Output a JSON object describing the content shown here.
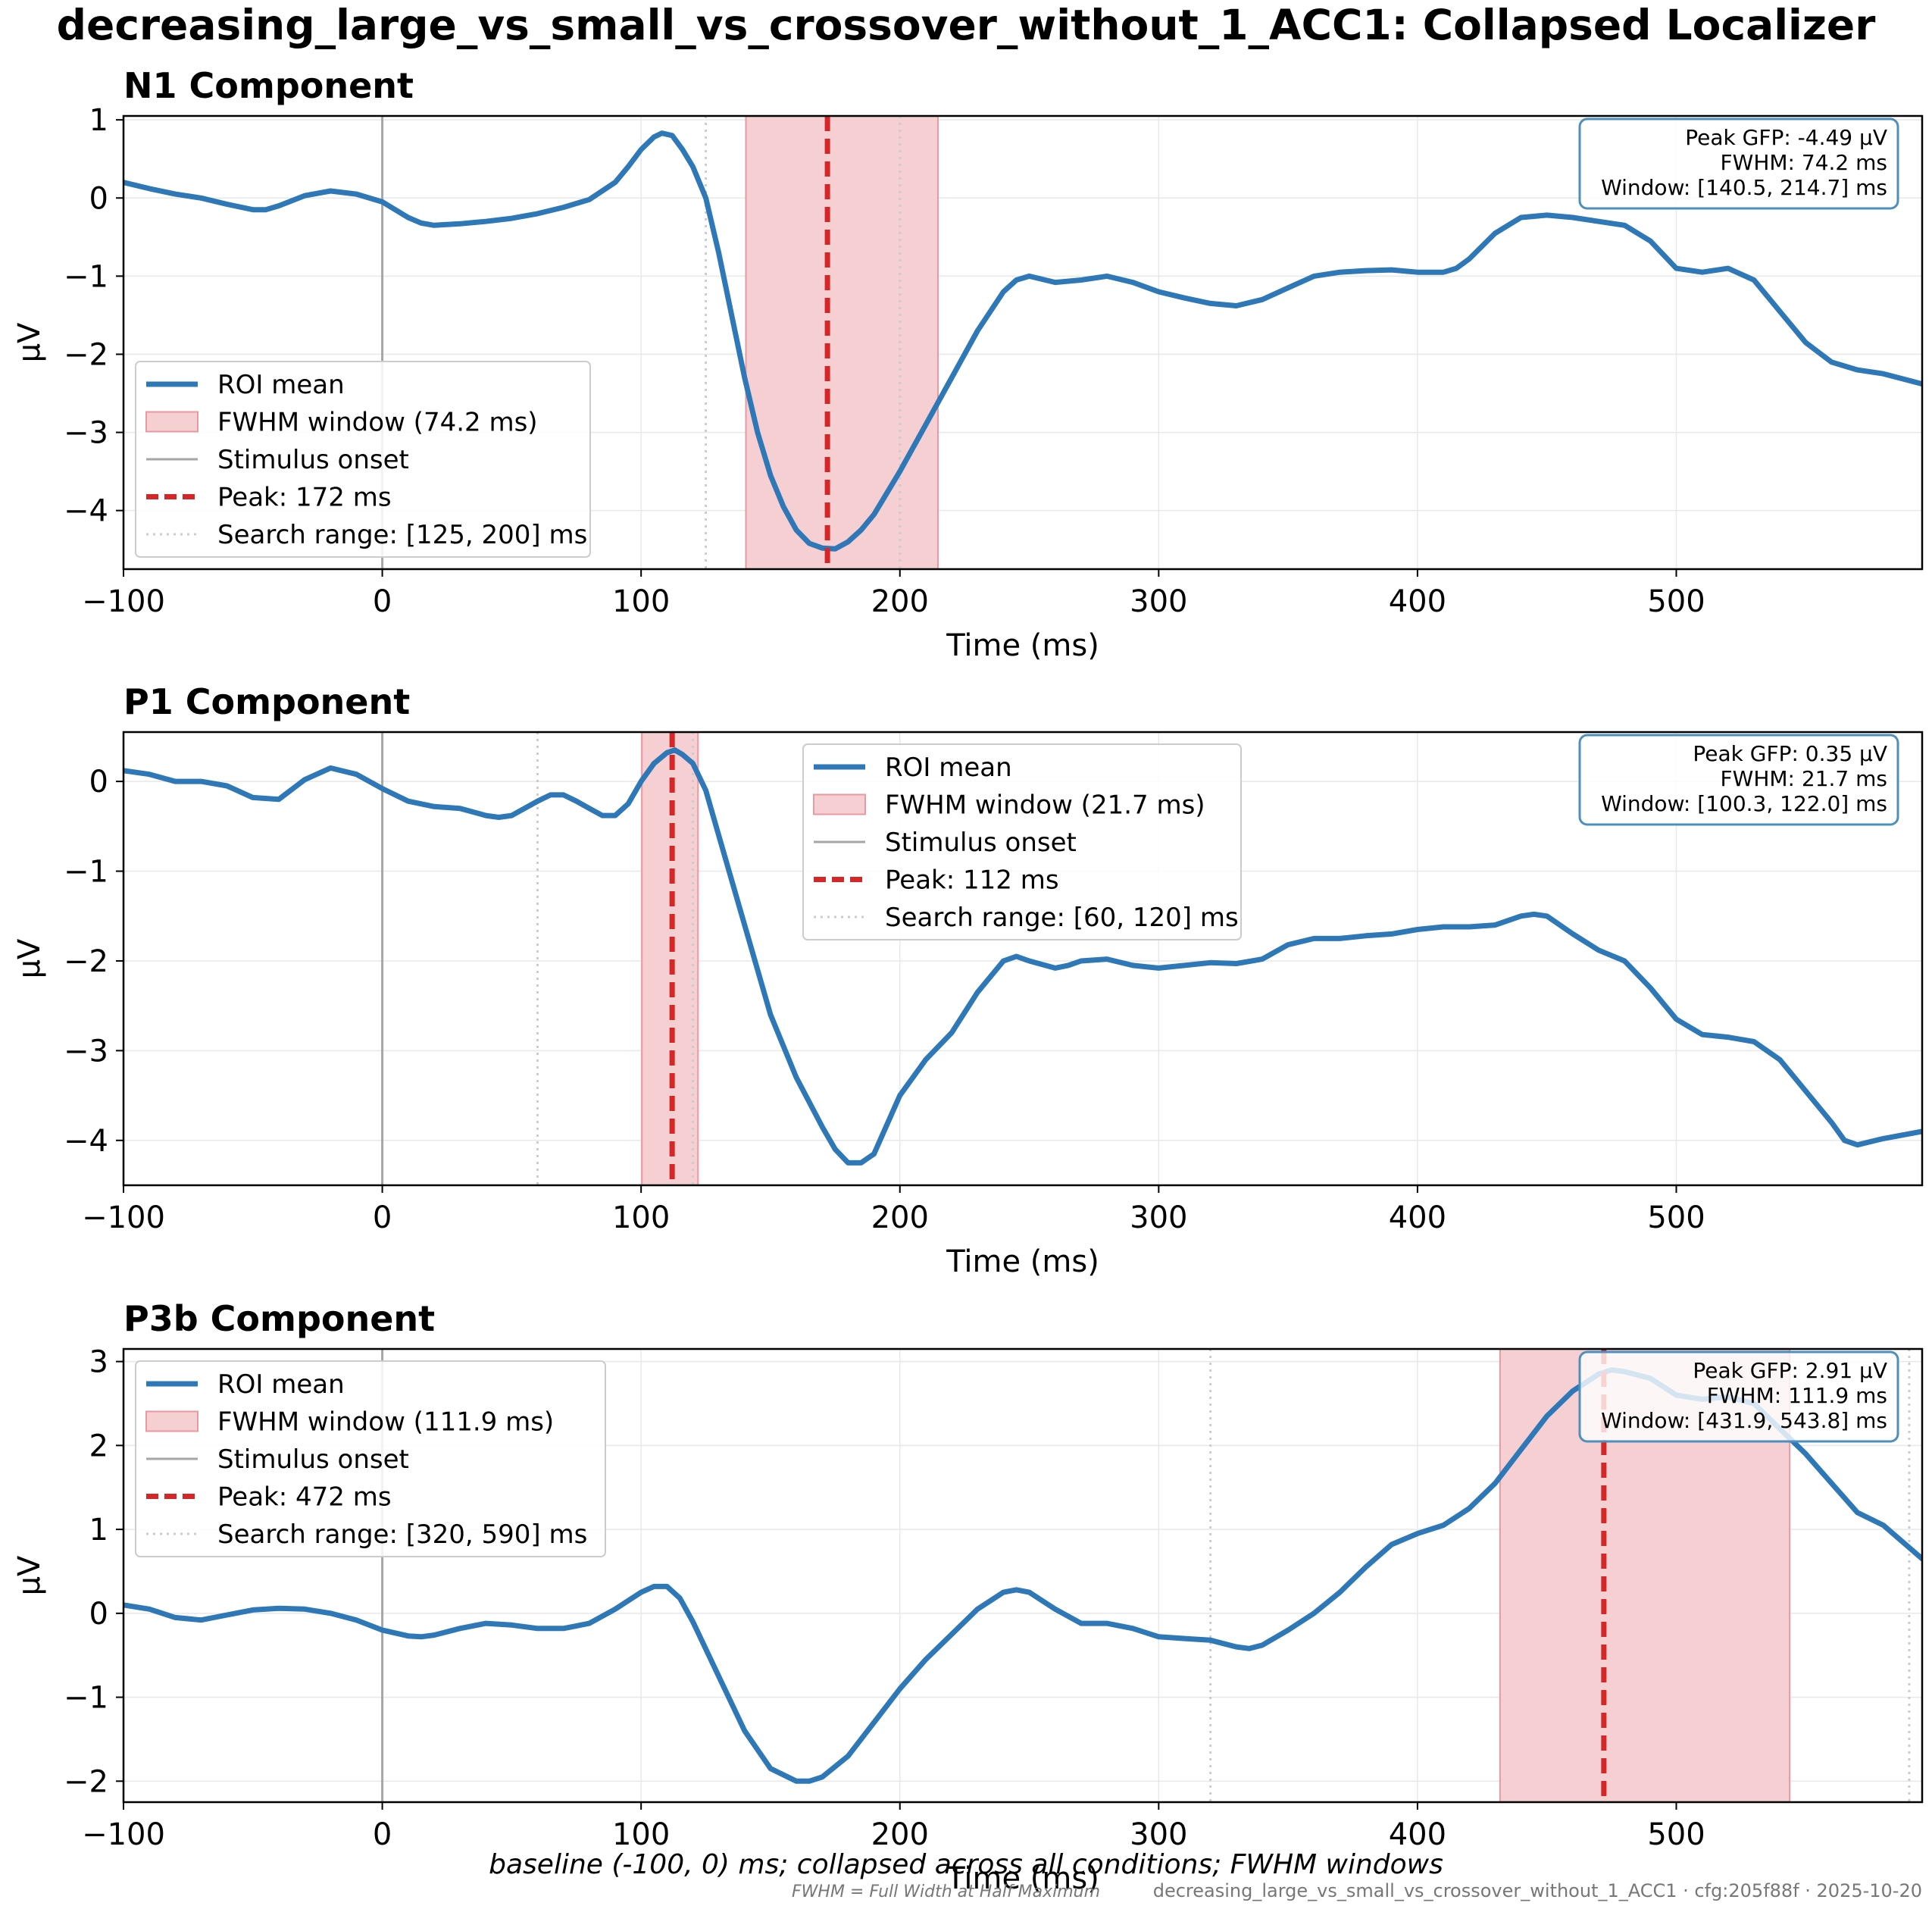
{
  "title": "decreasing_large_vs_small_vs_crossover_without_1_ACC1: Collapsed Localizer",
  "caption": "baseline (-100, 0) ms; collapsed across all conditions; FWHM windows",
  "footnote": "FWHM = Full Width at Half Maximum",
  "stamp": "decreasing_large_vs_small_vs_crossover_without_1_ACC1 · cfg:205f88f · 2025-10-20",
  "colors": {
    "roi": "#2e78b7",
    "fwhm_fill": "#f5cfd2",
    "fwhm_edge": "#e89aa0",
    "peak": "#d62728",
    "onset": "#a6a6a6",
    "search": "#cccccc",
    "grid": "#e8e8e8",
    "info_border": "#4d8fbd"
  },
  "chart_data": [
    {
      "type": "line",
      "title": "N1 Component",
      "xlabel": "Time (ms)",
      "ylabel": "µV",
      "xlim": [
        -100,
        595
      ],
      "ylim": [
        -4.75,
        1.05
      ],
      "xticks": [
        -100,
        0,
        100,
        200,
        300,
        400,
        500
      ],
      "yticks": [
        1,
        0,
        -1,
        -2,
        -3,
        -4
      ],
      "ytick_labels": [
        "1",
        "0",
        "−1",
        "−2",
        "−3",
        "−4"
      ],
      "xtick_labels": [
        "−100",
        "0",
        "100",
        "200",
        "300",
        "400",
        "500"
      ],
      "grid": true,
      "legend_position": "lower-left",
      "legend": [
        "ROI mean",
        "FWHM window (74.2 ms)",
        "Stimulus onset",
        "Peak: 172 ms",
        "Search range: [125, 200] ms"
      ],
      "info": [
        "Peak GFP: -4.49 µV",
        "FWHM: 74.2 ms",
        "Window: [140.5, 214.7] ms"
      ],
      "fwhm_window": [
        140.5,
        214.7
      ],
      "peak_ms": 172,
      "search_range": [
        125,
        200
      ],
      "stimulus_onset": 0,
      "series": [
        {
          "x": [
            -100,
            -90,
            -80,
            -70,
            -60,
            -50,
            -45,
            -40,
            -30,
            -20,
            -10,
            0,
            10,
            15,
            20,
            30,
            40,
            50,
            60,
            70,
            80,
            90,
            95,
            100,
            105,
            108,
            112,
            116,
            120,
            125,
            130,
            135,
            140,
            145,
            150,
            155,
            160,
            165,
            170,
            175,
            180,
            185,
            190,
            200,
            210,
            220,
            230,
            240,
            245,
            250,
            260,
            270,
            280,
            290,
            300,
            310,
            320,
            330,
            340,
            350,
            360,
            370,
            380,
            390,
            400,
            410,
            415,
            420,
            430,
            440,
            450,
            460,
            470,
            480,
            490,
            500,
            510,
            520,
            530,
            540,
            550,
            560,
            570,
            580,
            595
          ],
          "y": [
            0.2,
            0.12,
            0.05,
            0.0,
            -0.08,
            -0.15,
            -0.15,
            -0.1,
            0.03,
            0.09,
            0.05,
            -0.05,
            -0.25,
            -0.32,
            -0.35,
            -0.33,
            -0.3,
            -0.26,
            -0.2,
            -0.12,
            -0.02,
            0.2,
            0.4,
            0.62,
            0.78,
            0.83,
            0.8,
            0.62,
            0.4,
            0.0,
            -0.7,
            -1.5,
            -2.3,
            -3.0,
            -3.55,
            -3.95,
            -4.25,
            -4.42,
            -4.48,
            -4.49,
            -4.4,
            -4.25,
            -4.05,
            -3.5,
            -2.9,
            -2.3,
            -1.7,
            -1.2,
            -1.05,
            -1.0,
            -1.08,
            -1.05,
            -1.0,
            -1.08,
            -1.2,
            -1.28,
            -1.35,
            -1.38,
            -1.3,
            -1.15,
            -1.0,
            -0.95,
            -0.93,
            -0.92,
            -0.95,
            -0.95,
            -0.9,
            -0.78,
            -0.45,
            -0.25,
            -0.22,
            -0.25,
            -0.3,
            -0.35,
            -0.55,
            -0.9,
            -0.95,
            -0.9,
            -1.05,
            -1.45,
            -1.85,
            -2.1,
            -2.2,
            -2.25,
            -2.38
          ]
        }
      ]
    },
    {
      "type": "line",
      "title": "P1 Component",
      "xlabel": "Time (ms)",
      "ylabel": "µV",
      "xlim": [
        -100,
        595
      ],
      "ylim": [
        -4.5,
        0.55
      ],
      "xticks": [
        -100,
        0,
        100,
        200,
        300,
        400,
        500
      ],
      "yticks": [
        0,
        -1,
        -2,
        -3,
        -4
      ],
      "ytick_labels": [
        "0",
        "−1",
        "−2",
        "−3",
        "−4"
      ],
      "xtick_labels": [
        "−100",
        "0",
        "100",
        "200",
        "300",
        "400",
        "500"
      ],
      "grid": true,
      "legend_position": "upper-center",
      "legend": [
        "ROI mean",
        "FWHM window (21.7 ms)",
        "Stimulus onset",
        "Peak: 112 ms",
        "Search range: [60, 120] ms"
      ],
      "info": [
        "Peak GFP: 0.35 µV",
        "FWHM: 21.7 ms",
        "Window: [100.3, 122.0] ms"
      ],
      "fwhm_window": [
        100.3,
        122.0
      ],
      "peak_ms": 112,
      "search_range": [
        60,
        120
      ],
      "stimulus_onset": 0,
      "series": [
        {
          "x": [
            -100,
            -90,
            -80,
            -70,
            -60,
            -50,
            -40,
            -30,
            -20,
            -10,
            0,
            10,
            20,
            30,
            40,
            45,
            50,
            60,
            65,
            70,
            75,
            80,
            85,
            90,
            95,
            100,
            105,
            110,
            113,
            116,
            120,
            125,
            130,
            140,
            150,
            160,
            170,
            175,
            180,
            185,
            190,
            200,
            210,
            220,
            230,
            240,
            245,
            250,
            260,
            265,
            270,
            280,
            290,
            300,
            310,
            320,
            330,
            340,
            350,
            360,
            370,
            380,
            390,
            400,
            410,
            420,
            430,
            440,
            445,
            450,
            460,
            470,
            480,
            490,
            500,
            510,
            520,
            530,
            540,
            550,
            560,
            565,
            570,
            580,
            595
          ],
          "y": [
            0.12,
            0.08,
            0.0,
            0.0,
            -0.05,
            -0.18,
            -0.2,
            0.02,
            0.15,
            0.08,
            -0.08,
            -0.22,
            -0.28,
            -0.3,
            -0.38,
            -0.4,
            -0.38,
            -0.22,
            -0.15,
            -0.15,
            -0.22,
            -0.3,
            -0.38,
            -0.38,
            -0.25,
            0.0,
            0.2,
            0.32,
            0.35,
            0.3,
            0.2,
            -0.1,
            -0.6,
            -1.6,
            -2.6,
            -3.3,
            -3.85,
            -4.1,
            -4.25,
            -4.25,
            -4.15,
            -3.5,
            -3.1,
            -2.8,
            -2.35,
            -2.0,
            -1.95,
            -2.0,
            -2.08,
            -2.05,
            -2.0,
            -1.98,
            -2.05,
            -2.08,
            -2.05,
            -2.02,
            -2.03,
            -1.98,
            -1.82,
            -1.75,
            -1.75,
            -1.72,
            -1.7,
            -1.65,
            -1.62,
            -1.62,
            -1.6,
            -1.5,
            -1.48,
            -1.5,
            -1.7,
            -1.88,
            -2.0,
            -2.3,
            -2.65,
            -2.82,
            -2.85,
            -2.9,
            -3.1,
            -3.45,
            -3.8,
            -4.0,
            -4.05,
            -3.98,
            -3.9
          ]
        }
      ]
    },
    {
      "type": "line",
      "title": "P3b Component",
      "xlabel": "Time (ms)",
      "ylabel": "µV",
      "xlim": [
        -100,
        595
      ],
      "ylim": [
        -2.25,
        3.15
      ],
      "xticks": [
        -100,
        0,
        100,
        200,
        300,
        400,
        500
      ],
      "yticks": [
        3,
        2,
        1,
        0,
        -1,
        -2
      ],
      "ytick_labels": [
        "3",
        "2",
        "1",
        "0",
        "−1",
        "−2"
      ],
      "xtick_labels": [
        "−100",
        "0",
        "100",
        "200",
        "300",
        "400",
        "500"
      ],
      "grid": true,
      "legend_position": "upper-left",
      "legend": [
        "ROI mean",
        "FWHM window (111.9 ms)",
        "Stimulus onset",
        "Peak: 472 ms",
        "Search range: [320, 590] ms"
      ],
      "info": [
        "Peak GFP: 2.91 µV",
        "FWHM: 111.9 ms",
        "Window: [431.9, 543.8] ms"
      ],
      "fwhm_window": [
        431.9,
        543.8
      ],
      "peak_ms": 472,
      "search_range": [
        320,
        590
      ],
      "stimulus_onset": 0,
      "series": [
        {
          "x": [
            -100,
            -90,
            -80,
            -70,
            -60,
            -50,
            -40,
            -30,
            -20,
            -10,
            0,
            10,
            15,
            20,
            30,
            40,
            50,
            60,
            70,
            80,
            90,
            100,
            105,
            110,
            115,
            120,
            130,
            140,
            150,
            160,
            165,
            170,
            180,
            190,
            200,
            210,
            220,
            230,
            240,
            245,
            250,
            260,
            270,
            280,
            290,
            300,
            310,
            320,
            330,
            335,
            340,
            350,
            360,
            370,
            380,
            390,
            400,
            410,
            420,
            430,
            440,
            450,
            460,
            470,
            475,
            480,
            490,
            500,
            510,
            520,
            530,
            540,
            550,
            560,
            570,
            580,
            595
          ],
          "y": [
            0.1,
            0.05,
            -0.05,
            -0.08,
            -0.02,
            0.04,
            0.06,
            0.05,
            0.0,
            -0.08,
            -0.2,
            -0.27,
            -0.28,
            -0.26,
            -0.18,
            -0.12,
            -0.14,
            -0.18,
            -0.18,
            -0.12,
            0.05,
            0.25,
            0.32,
            0.32,
            0.18,
            -0.1,
            -0.75,
            -1.4,
            -1.85,
            -2.0,
            -2.0,
            -1.95,
            -1.7,
            -1.3,
            -0.9,
            -0.55,
            -0.25,
            0.05,
            0.25,
            0.28,
            0.25,
            0.05,
            -0.12,
            -0.12,
            -0.18,
            -0.28,
            -0.3,
            -0.32,
            -0.4,
            -0.42,
            -0.38,
            -0.2,
            0.0,
            0.25,
            0.55,
            0.82,
            0.95,
            1.05,
            1.25,
            1.55,
            1.95,
            2.35,
            2.65,
            2.85,
            2.9,
            2.88,
            2.8,
            2.6,
            2.55,
            2.58,
            2.5,
            2.2,
            1.9,
            1.55,
            1.2,
            1.05,
            0.65
          ]
        }
      ]
    }
  ]
}
